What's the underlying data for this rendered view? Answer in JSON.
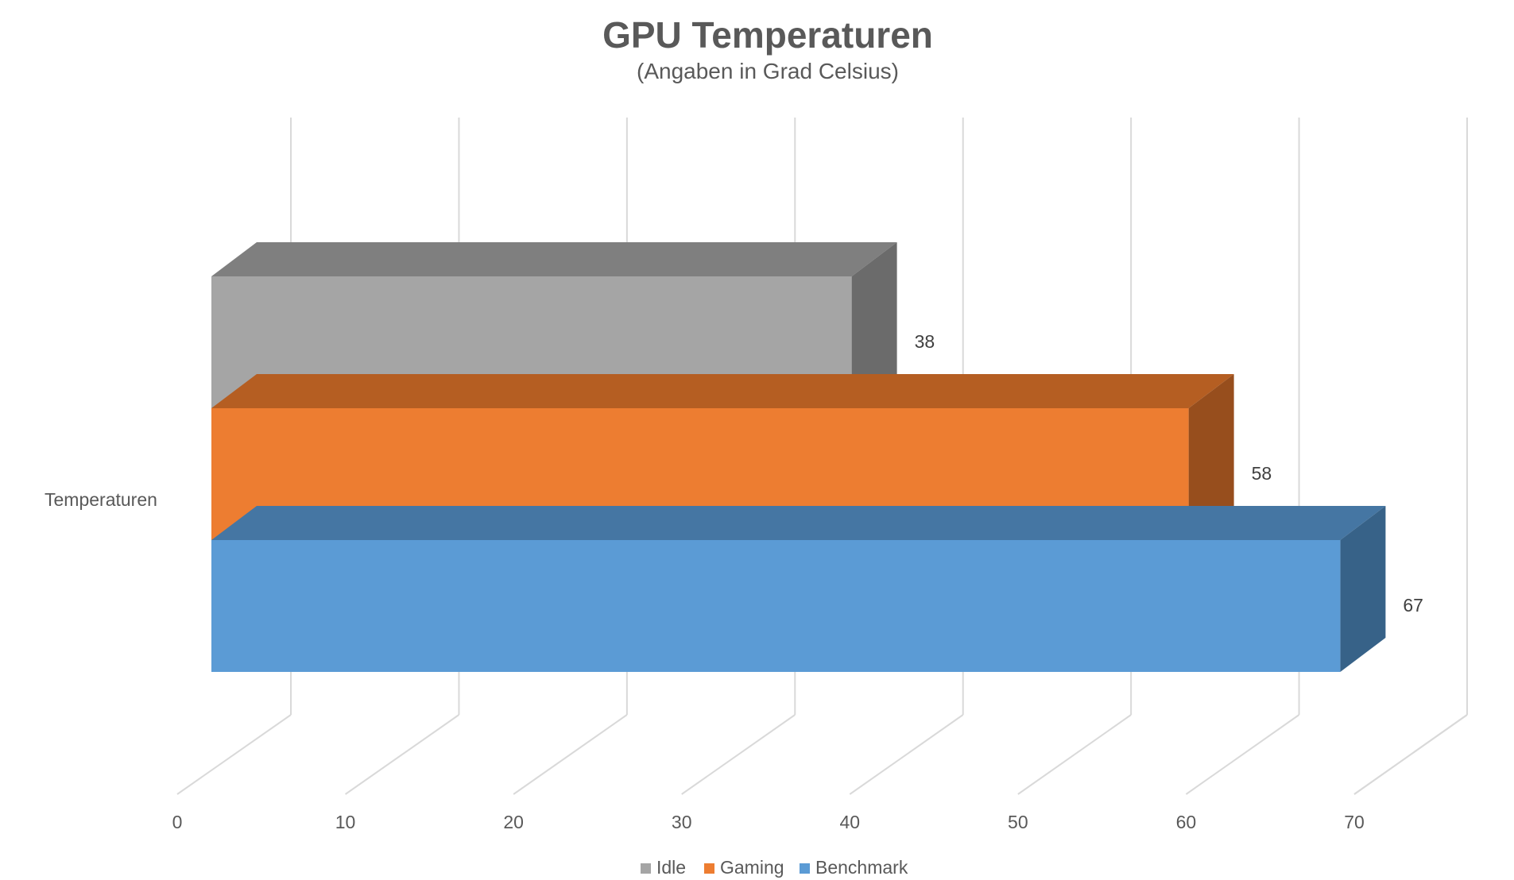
{
  "chart_data": {
    "type": "bar",
    "orientation": "horizontal",
    "style": "3d",
    "title": "GPU Temperaturen",
    "subtitle": "(Angaben in Grad Celsius)",
    "categories": [
      "Temperaturen"
    ],
    "series": [
      {
        "name": "Idle",
        "values": [
          38
        ],
        "color": "#A5A5A5",
        "top_color": "#7F7F7F",
        "side_color": "#6B6B6B"
      },
      {
        "name": "Gaming",
        "values": [
          58
        ],
        "color": "#ED7D31",
        "top_color": "#B55E22",
        "side_color": "#974E1D"
      },
      {
        "name": "Benchmark",
        "values": [
          67
        ],
        "color": "#5B9BD5",
        "top_color": "#4576A3",
        "side_color": "#376288"
      }
    ],
    "x_ticks": [
      0,
      10,
      20,
      30,
      40,
      50,
      60,
      70
    ],
    "xlim": [
      0,
      70
    ],
    "grid": true,
    "legend_position": "bottom",
    "data_labels": [
      "38",
      "58",
      "67"
    ]
  }
}
